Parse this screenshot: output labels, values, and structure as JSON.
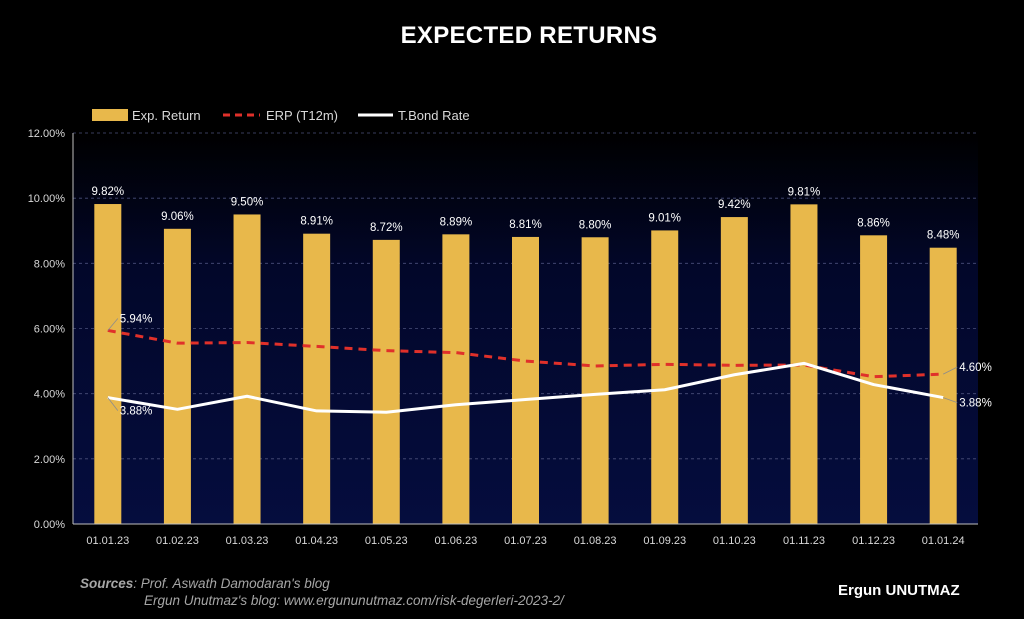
{
  "chart_data": {
    "type": "bar",
    "title": "EXPECTED RETURNS",
    "categories": [
      "01.01.23",
      "01.02.23",
      "01.03.23",
      "01.04.23",
      "01.05.23",
      "01.06.23",
      "01.07.23",
      "01.08.23",
      "01.09.23",
      "01.10.23",
      "01.11.23",
      "01.12.23",
      "01.01.24"
    ],
    "series": [
      {
        "name": "Exp. Return",
        "kind": "bar",
        "color": "#e8b84b",
        "values": [
          9.82,
          9.06,
          9.5,
          8.91,
          8.72,
          8.89,
          8.81,
          8.8,
          9.01,
          9.42,
          9.81,
          8.86,
          8.48
        ],
        "labels": [
          "9.82%",
          "9.06%",
          "9.50%",
          "8.91%",
          "8.72%",
          "8.89%",
          "8.81%",
          "8.80%",
          "9.01%",
          "9.42%",
          "9.81%",
          "8.86%",
          "8.48%"
        ]
      },
      {
        "name": "ERP (T12m)",
        "kind": "dashed-line",
        "color": "#e0302a",
        "values": [
          5.94,
          5.55,
          5.57,
          5.45,
          5.32,
          5.26,
          5.0,
          4.85,
          4.9,
          4.87,
          4.88,
          4.52,
          4.6
        ]
      },
      {
        "name": "T.Bond Rate",
        "kind": "line",
        "color": "#ffffff",
        "values": [
          3.88,
          3.52,
          3.92,
          3.47,
          3.43,
          3.66,
          3.82,
          3.98,
          4.12,
          4.58,
          4.93,
          4.28,
          3.88
        ]
      }
    ],
    "line_labels": [
      {
        "series": 1,
        "index": 0,
        "text": "5.94%"
      },
      {
        "series": 1,
        "index": 12,
        "text": "4.60%"
      },
      {
        "series": 2,
        "index": 0,
        "text": "3.88%"
      },
      {
        "series": 2,
        "index": 12,
        "text": "3.88%"
      }
    ],
    "y_ticks": [
      "0.00%",
      "2.00%",
      "4.00%",
      "6.00%",
      "8.00%",
      "10.00%",
      "12.00%"
    ],
    "ylim": [
      0,
      12
    ],
    "legend": "top-left",
    "grid": true
  },
  "sources": {
    "key": "Sources",
    "line1": "Prof. Aswath Damodaran's blog",
    "line2": "Ergun Unutmaz's blog: www.ergununutmaz.com/risk-degerleri-2023-2/"
  },
  "author": "Ergun UNUTMAZ"
}
